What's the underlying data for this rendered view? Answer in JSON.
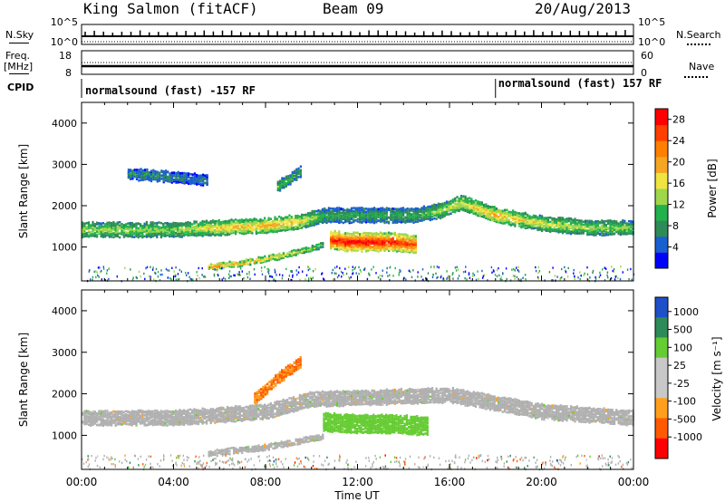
{
  "header": {
    "station": "King Salmon (fitACF)",
    "beam": "Beam 09",
    "date": "20/Aug/2013"
  },
  "summary_panels": {
    "left_labels": {
      "nsky": "N.Sky",
      "freq": "Freq.",
      "freq_unit": "[MHz]",
      "cpid": "CPID"
    },
    "right_labels": {
      "nsearch": "N.Search",
      "nave": "Nave"
    },
    "noise_axis": {
      "left_top": "10^5",
      "left_bottom": "10^0",
      "right_top": "10^5",
      "right_bottom": "10^0"
    },
    "freq_axis": {
      "top": "18",
      "bottom": "8"
    },
    "nave_axis": {
      "top": "60",
      "bottom": "0"
    },
    "cpid_segments": [
      {
        "label": "normalsound (fast) -157 RF"
      },
      {
        "label": "normalsound (fast) 157 RF"
      }
    ],
    "cpid_change_time_hours": 18.0
  },
  "colors": {
    "power_scale": [
      "#0000ff",
      "#1a5fd0",
      "#2e8b57",
      "#22b14c",
      "#9fd64b",
      "#f0e442",
      "#f5a623",
      "#ff7f00",
      "#ff4000",
      "#ff0000"
    ],
    "velocity_scale": [
      "#ff0000",
      "#ff5a00",
      "#ff9f1c",
      "#c8c8c8",
      "#c8c8c8",
      "#66cc33",
      "#2e8b57",
      "#1e50c8"
    ],
    "ground_scatter": "#b0b0b0"
  },
  "chart_data": [
    {
      "type": "heatmap",
      "panel": "power",
      "xlabel": "",
      "ylabel": "Slant Range [km]",
      "ylim": [
        180,
        4500
      ],
      "xlim_hours": [
        0,
        24
      ],
      "yticks": [
        "1000",
        "2000",
        "3000",
        "4000"
      ],
      "xticks": [
        "00:00",
        "04:00",
        "08:00",
        "12:00",
        "16:00",
        "20:00",
        "00:00"
      ],
      "colorbar": {
        "label": "Power [dB]",
        "ticks": [
          "4",
          "8",
          "12",
          "16",
          "20",
          "24",
          "28"
        ],
        "range": [
          0,
          30
        ]
      },
      "features": [
        {
          "name": "main band",
          "t": [
            0,
            2,
            4,
            6,
            8,
            9.5,
            10.5,
            14.5,
            15.5,
            16.5,
            18,
            20,
            22,
            24
          ],
          "range_km": [
            1450,
            1450,
            1450,
            1500,
            1550,
            1650,
            1800,
            1800,
            1900,
            2100,
            1800,
            1600,
            1500,
            1500
          ],
          "power_db": [
            14,
            14,
            13,
            18,
            20,
            18,
            10,
            10,
            14,
            16,
            20,
            16,
            14,
            13
          ]
        },
        {
          "name": "strong echo",
          "t": [
            10.8,
            11.5,
            12.5,
            13.5,
            14.5
          ],
          "range_km": [
            1200,
            1150,
            1150,
            1150,
            1100
          ],
          "power_db": [
            28,
            30,
            30,
            28,
            26
          ]
        },
        {
          "name": "lower arc",
          "t": [
            5.5,
            7,
            8.5,
            10,
            10.5
          ],
          "range_km": [
            550,
            650,
            800,
            1000,
            1100
          ],
          "power_db": [
            22,
            20,
            18,
            14,
            12
          ]
        },
        {
          "name": "upper patch",
          "t": [
            2,
            3.5,
            5.5
          ],
          "range_km": [
            2800,
            2750,
            2650
          ],
          "power_db": [
            8,
            8,
            6
          ]
        },
        {
          "name": "upper patch 2",
          "t": [
            8.5,
            9.5
          ],
          "range_km": [
            2500,
            2850
          ],
          "power_db": [
            12,
            10
          ]
        }
      ]
    },
    {
      "type": "heatmap",
      "panel": "velocity",
      "xlabel": "Time UT",
      "ylabel": "Slant Range [km]",
      "ylim": [
        180,
        4500
      ],
      "xlim_hours": [
        0,
        24
      ],
      "yticks": [
        "1000",
        "2000",
        "3000",
        "4000"
      ],
      "xticks": [
        "00:00",
        "04:00",
        "08:00",
        "12:00",
        "16:00",
        "20:00",
        "00:00"
      ],
      "colorbar": {
        "label": "Velocity [m s⁻¹]",
        "ticks": [
          "1000",
          "500",
          "100",
          "25",
          "-25",
          "-100",
          "-500",
          "-1000"
        ]
      },
      "features": [
        {
          "name": "ground scatter band",
          "t": [
            0,
            4,
            8,
            10,
            16,
            20,
            24
          ],
          "range_km": [
            1450,
            1450,
            1600,
            1900,
            2000,
            1600,
            1450
          ],
          "velocity": 0
        },
        {
          "name": "positive patch",
          "t": [
            10.5,
            12,
            13.5,
            15
          ],
          "range_km": [
            1350,
            1300,
            1300,
            1250
          ],
          "velocity": 150
        },
        {
          "name": "negative patch",
          "t": [
            7.5,
            8.5,
            9.5
          ],
          "range_km": [
            1900,
            2400,
            2800
          ],
          "velocity": -300
        },
        {
          "name": "lower arc gs",
          "t": [
            5.5,
            8,
            10.5
          ],
          "range_km": [
            600,
            750,
            1000
          ],
          "velocity": 0
        }
      ]
    }
  ]
}
